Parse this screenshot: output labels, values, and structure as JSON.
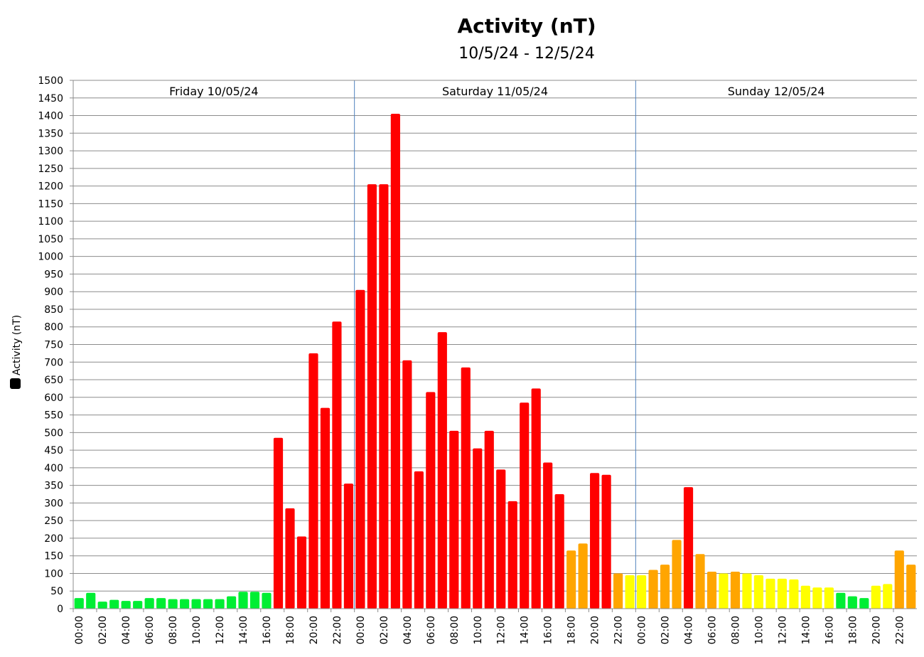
{
  "chart_data": {
    "type": "bar",
    "title": "Activity (nT)",
    "subtitle": "10/5/24 - 12/5/24",
    "ylabel": "Activity (nT)",
    "xlabel": "",
    "ylim": [
      0,
      1500
    ],
    "ytick_step": 50,
    "grid": true,
    "legend": "left",
    "legend_swatch_color": "#000000",
    "colors": {
      "green": "#00ee33",
      "yellow": "#ffff00",
      "orange": "#ffa500",
      "red": "#ff0000"
    },
    "days": [
      {
        "label": "Friday 10/05/24",
        "start_index": 0
      },
      {
        "label": "Saturday 11/05/24",
        "start_index": 24
      },
      {
        "label": "Sunday 12/05/24",
        "start_index": 48
      }
    ],
    "x_tick_labels": [
      "00:00",
      "02:00",
      "04:00",
      "06:00",
      "08:00",
      "10:00",
      "12:00",
      "14:00",
      "16:00",
      "18:00",
      "20:00",
      "22:00",
      "00:00",
      "02:00",
      "04:00",
      "06:00",
      "08:00",
      "10:00",
      "12:00",
      "14:00",
      "16:00",
      "18:00",
      "20:00",
      "22:00",
      "00:00",
      "02:00",
      "04:00",
      "06:00",
      "08:00",
      "10:00",
      "12:00",
      "14:00",
      "16:00",
      "18:00",
      "20:00",
      "22:00"
    ],
    "x_tick_every": 2,
    "values": [
      30,
      45,
      20,
      25,
      22,
      22,
      30,
      30,
      27,
      27,
      27,
      27,
      27,
      35,
      48,
      48,
      45,
      485,
      285,
      205,
      725,
      570,
      815,
      355,
      905,
      1205,
      1205,
      1405,
      705,
      390,
      615,
      785,
      505,
      685,
      455,
      505,
      395,
      305,
      585,
      625,
      415,
      325,
      165,
      185,
      385,
      380,
      100,
      95,
      95,
      110,
      125,
      195,
      345,
      155,
      105,
      100,
      105,
      100,
      95,
      85,
      85,
      83,
      65,
      60,
      60,
      45,
      35,
      30,
      65,
      70,
      165,
      125
    ],
    "bar_colors": [
      "green",
      "green",
      "green",
      "green",
      "green",
      "green",
      "green",
      "green",
      "green",
      "green",
      "green",
      "green",
      "green",
      "green",
      "green",
      "green",
      "green",
      "red",
      "red",
      "red",
      "red",
      "red",
      "red",
      "red",
      "red",
      "red",
      "red",
      "red",
      "red",
      "red",
      "red",
      "red",
      "red",
      "red",
      "red",
      "red",
      "red",
      "red",
      "red",
      "red",
      "red",
      "red",
      "orange",
      "orange",
      "red",
      "red",
      "orange",
      "yellow",
      "yellow",
      "orange",
      "orange",
      "orange",
      "red",
      "orange",
      "orange",
      "yellow",
      "orange",
      "yellow",
      "yellow",
      "yellow",
      "yellow",
      "yellow",
      "yellow",
      "yellow",
      "yellow",
      "green",
      "green",
      "green",
      "yellow",
      "yellow",
      "orange",
      "orange"
    ]
  }
}
